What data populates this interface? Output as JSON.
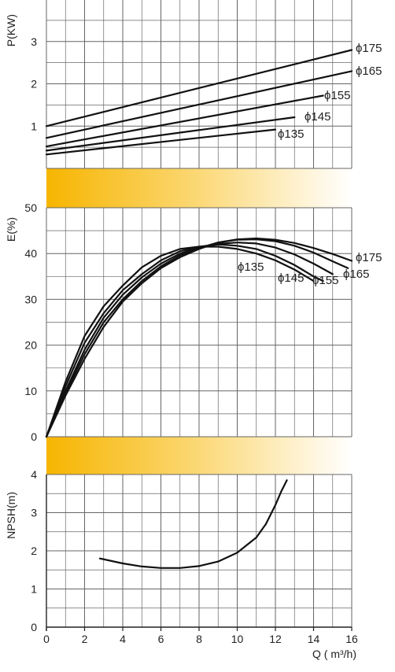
{
  "chart_data": {
    "type": "line",
    "x_axis": {
      "label": "Q ( m³/h)",
      "min": 0,
      "max": 16,
      "ticks": [
        "0",
        "2",
        "4",
        "6",
        "8",
        "10",
        "12",
        "14",
        "16"
      ]
    },
    "panels": [
      {
        "id": "power",
        "ylabel": "P(KW)",
        "ylim": [
          0,
          4
        ],
        "ticks": [
          "1",
          "2",
          "3"
        ],
        "grid": true,
        "series": [
          {
            "name": "ϕ135",
            "x": [
              0,
              12
            ],
            "y": [
              0.33,
              0.92
            ]
          },
          {
            "name": "ϕ145",
            "x": [
              0,
              13
            ],
            "y": [
              0.42,
              1.21
            ]
          },
          {
            "name": "ϕ155",
            "x": [
              0,
              14.5
            ],
            "y": [
              0.52,
              1.72
            ]
          },
          {
            "name": "ϕ165",
            "x": [
              0,
              16
            ],
            "y": [
              0.72,
              2.3
            ]
          },
          {
            "name": "ϕ175",
            "x": [
              0,
              16
            ],
            "y": [
              1.0,
              2.8
            ]
          }
        ]
      },
      {
        "id": "efficiency",
        "ylabel": "E(%)",
        "ylim": [
          0,
          50
        ],
        "ticks": [
          "0",
          "10",
          "20",
          "30",
          "40",
          "50"
        ],
        "grid": true,
        "series": [
          {
            "name": "ϕ135",
            "x": [
              0,
              1,
              2,
              3,
              4,
              5,
              6,
              7,
              8,
              9,
              10,
              11,
              12,
              13,
              14
            ],
            "y": [
              0,
              12,
              22,
              28.5,
              33,
              37,
              39.5,
              41,
              41.5,
              41.5,
              41,
              40,
              38.5,
              36.5,
              34
            ]
          },
          {
            "name": "ϕ145",
            "x": [
              0,
              1,
              2,
              3,
              4,
              5,
              6,
              7,
              8,
              9,
              10,
              11,
              12,
              13,
              14,
              14.5
            ],
            "y": [
              0,
              11,
              20.5,
              27,
              32,
              35.5,
              38.5,
              40.5,
              41.5,
              42,
              41.7,
              41,
              39.5,
              37.5,
              35,
              34
            ]
          },
          {
            "name": "ϕ155",
            "x": [
              0,
              1,
              2,
              3,
              4,
              5,
              6,
              7,
              8,
              9,
              10,
              11,
              12,
              13,
              14,
              15
            ],
            "y": [
              0,
              10,
              19,
              26,
              31,
              34.8,
              37.8,
              40,
              41.3,
              42.1,
              42.4,
              42.2,
              41.3,
              39.8,
              37.8,
              35.5
            ]
          },
          {
            "name": "ϕ165",
            "x": [
              0,
              1,
              2,
              3,
              4,
              5,
              6,
              7,
              8,
              9,
              10,
              11,
              12,
              13,
              14,
              15,
              15.8
            ],
            "y": [
              0,
              9.5,
              18,
              25,
              30,
              34,
              37.2,
              39.6,
              41.2,
              42.4,
              43,
              43.1,
              42.7,
              41.7,
              40.2,
              38.3,
              36.8
            ]
          },
          {
            "name": "ϕ175",
            "x": [
              0,
              1,
              2,
              3,
              4,
              5,
              6,
              7,
              8,
              9,
              10,
              11,
              12,
              13,
              14,
              15,
              16
            ],
            "y": [
              0,
              9,
              17,
              24,
              29.5,
              33.5,
              36.8,
              39.2,
              41,
              42.4,
              43.1,
              43.3,
              43,
              42.3,
              41.2,
              39.9,
              38.4
            ]
          }
        ]
      },
      {
        "id": "npsh",
        "ylabel": "NPSH(m)",
        "ylim": [
          0,
          4
        ],
        "ticks": [
          "0",
          "1",
          "2",
          "3",
          "4"
        ],
        "grid": true,
        "series": [
          {
            "x": [
              2.8,
              4,
              5,
              6,
              7,
              8,
              9,
              10,
              11,
              11.5,
              12,
              12.3,
              12.6
            ],
            "y": [
              1.8,
              1.67,
              1.59,
              1.55,
              1.55,
              1.6,
              1.72,
              1.95,
              2.35,
              2.7,
              3.2,
              3.55,
              3.85
            ]
          }
        ]
      }
    ],
    "series_colors": "#111111",
    "band_gradient": [
      "#f7b500",
      "#fbd56a",
      "#ffffff"
    ]
  }
}
